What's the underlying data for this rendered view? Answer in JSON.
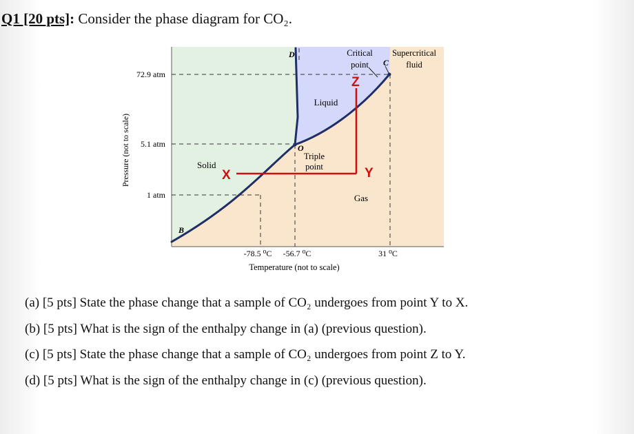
{
  "header": {
    "question_id": "Q1 [20 pts]",
    "prompt": "Consider the phase diagram for CO₂."
  },
  "diagram": {
    "y_axis_label": "Pressure (not to scale)",
    "x_axis_label": "Temperature (not to scale)",
    "pressure_ticks": [
      "72.9 atm",
      "5.1 atm",
      "1 atm"
    ],
    "temperature_ticks": [
      "-78.5 ⁰C",
      "-56.7 ⁰C",
      "31 ⁰C"
    ],
    "region_labels": {
      "solid": "Solid",
      "liquid": "Liquid",
      "gas": "Gas",
      "supercritical_line1": "Supercritical",
      "supercritical_line2": "fluid"
    },
    "point_labels": {
      "critical_line1": "Critical",
      "critical_line2": "point",
      "triple_line1": "Triple",
      "triple_line2": "point",
      "letter_b": "B",
      "letter_c": "C",
      "letter_d": "D",
      "letter_o": "O"
    },
    "path_markers": {
      "x": "X",
      "y": "Y",
      "z": "Z"
    },
    "colors": {
      "solid_region": "#e3f1e3",
      "liquid_region": "#d4d8fb",
      "gas_region": "#fae6cc",
      "phase_boundary": "#1f2f66",
      "path_marker": "#cc1010"
    }
  },
  "questions": [
    {
      "text": "(a)  [5 pts] State the phase change that a sample of CO₂ undergoes from point Y to X."
    },
    {
      "text": "(b)  [5 pts] What is the sign of the enthalpy change in (a) (previous question)."
    },
    {
      "text": "(c)  [5 pts] State the phase change that a sample of CO₂ undergoes from point Z to Y."
    },
    {
      "text": "(d)  [5 pts] What is the sign of the enthalpy change in (c) (previous question)."
    }
  ]
}
